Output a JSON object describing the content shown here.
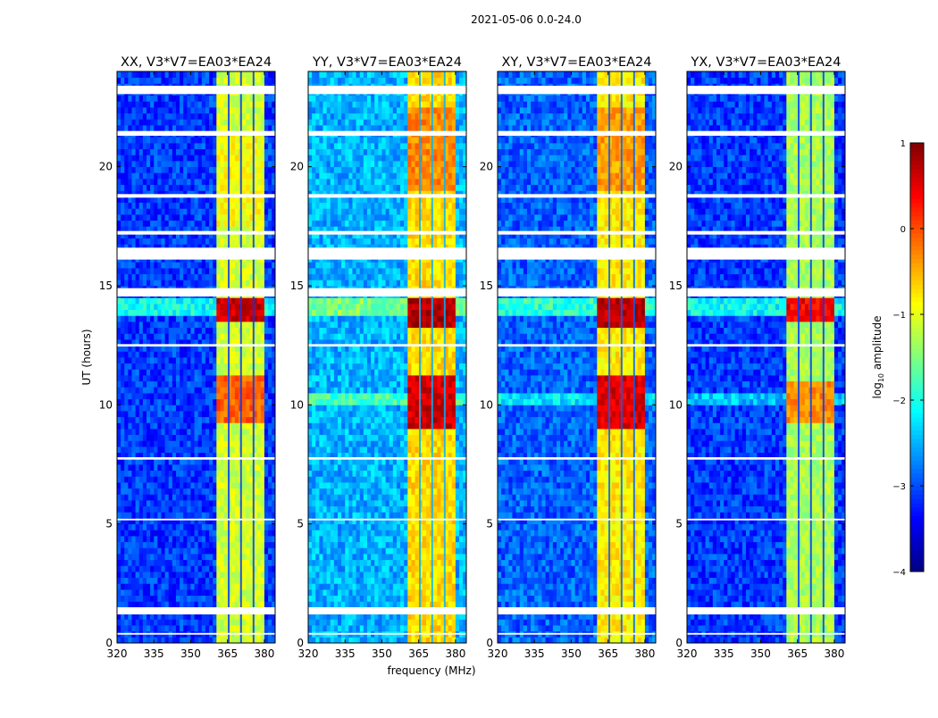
{
  "chart_data": {
    "type": "heatmap",
    "suptitle": "2021-05-06 0.0-24.0",
    "xlabel": "frequency (MHz)",
    "ylabel": "UT (hours)",
    "xlim": [
      320,
      384.4
    ],
    "ylim": [
      0,
      24
    ],
    "xticks": [
      320,
      335,
      350,
      365,
      380
    ],
    "yticks": [
      0,
      5,
      10,
      15,
      20
    ],
    "colorbar": {
      "label_main": "log",
      "label_sub": "10",
      "label_rest": " amplitude",
      "range": [
        -4,
        1
      ],
      "ticks": [
        1,
        0,
        -1,
        -2,
        -3,
        -4
      ],
      "tick_labels": [
        "1",
        "0",
        "−1",
        "−2",
        "−3",
        "−4"
      ],
      "colormap": "jet"
    },
    "band": {
      "start_mhz": 360.7,
      "end_mhz": 380.6,
      "gaps_mhz": [
        365.5,
        370.5,
        375.6
      ]
    },
    "flagged_hours": [
      [
        23.05,
        23.4
      ],
      [
        21.3,
        21.5
      ],
      [
        18.7,
        18.85
      ],
      [
        17.15,
        17.3
      ],
      [
        16.1,
        16.6
      ],
      [
        14.55,
        14.9
      ],
      [
        12.45,
        12.55
      ],
      [
        7.7,
        7.8
      ],
      [
        5.15,
        5.22
      ],
      [
        1.2,
        1.5
      ],
      [
        0.35,
        0.42
      ]
    ],
    "panels": [
      {
        "title": "XX, V3*V7=EA03*EA24",
        "background_level": -3.1,
        "band_level": -1.1,
        "band_segments": [
          [
            9.3,
            11.2,
            -0.1
          ],
          [
            13.4,
            14.5,
            0.6
          ],
          [
            17.5,
            21.5,
            -0.9
          ]
        ]
      },
      {
        "title": "YY, V3*V7=EA03*EA24",
        "background_level": -2.5,
        "band_level": -0.7,
        "band_segments": [
          [
            9.0,
            11.3,
            0.6
          ],
          [
            13.3,
            14.5,
            0.75
          ],
          [
            19.0,
            22.5,
            -0.3
          ]
        ]
      },
      {
        "title": "XY, V3*V7=EA03*EA24",
        "background_level": -2.9,
        "band_level": -0.8,
        "band_segments": [
          [
            9.0,
            11.3,
            0.55
          ],
          [
            13.3,
            14.5,
            0.7
          ],
          [
            19.0,
            22.5,
            -0.4
          ]
        ]
      },
      {
        "title": "YX, V3*V7=EA03*EA24",
        "background_level": -3.1,
        "band_level": -1.3,
        "band_segments": [
          [
            9.3,
            11.0,
            -0.3
          ],
          [
            13.5,
            14.4,
            0.4
          ]
        ]
      }
    ]
  }
}
